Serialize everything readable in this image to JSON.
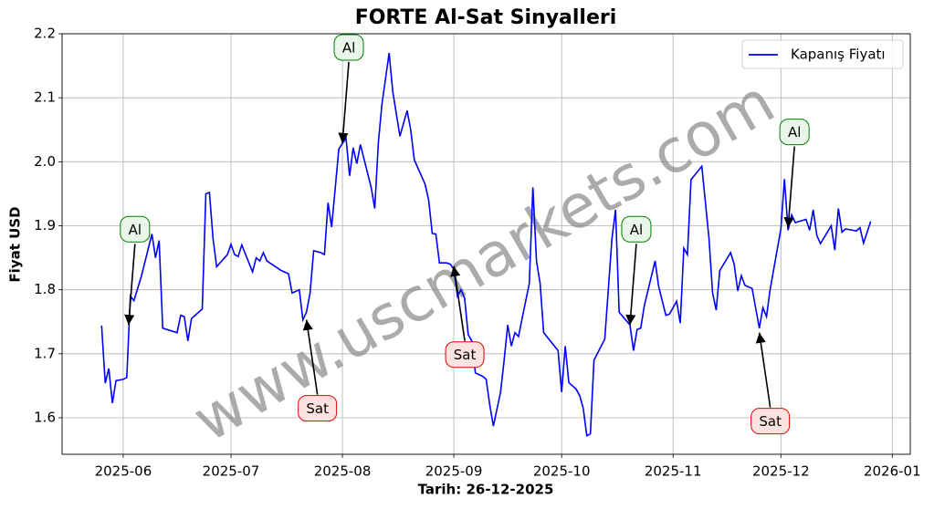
{
  "chart_data": {
    "type": "line",
    "title": "FORTE Al-Sat Sinyalleri",
    "xlabel": "Tarih: 26-12-2025",
    "ylabel": "Fiyat USD",
    "watermark": "www.uscmarkets.com",
    "legend": "upper right",
    "grid": true,
    "xlim": [
      20223,
      20459
    ],
    "xticks": [
      {
        "value": 20240,
        "label": "2025-06"
      },
      {
        "value": 20270,
        "label": "2025-07"
      },
      {
        "value": 20301,
        "label": "2025-08"
      },
      {
        "value": 20332,
        "label": "2025-09"
      },
      {
        "value": 20362,
        "label": "2025-10"
      },
      {
        "value": 20393,
        "label": "2025-11"
      },
      {
        "value": 20423,
        "label": "2025-12"
      },
      {
        "value": 20454,
        "label": "2026-01"
      }
    ],
    "ylim": [
      1.543,
      2.2
    ],
    "yticks": [
      1.6,
      1.7,
      1.8,
      1.9,
      {
        "value": 2,
        "label": "2.0"
      },
      2.1,
      2.2
    ],
    "series": [
      {
        "name": "Kapanış Fiyatı",
        "color": "#0000ff",
        "x": [
          20234,
          20235,
          20236,
          20237,
          20238,
          20240,
          20241,
          20242,
          20243,
          20245,
          20248,
          20249,
          20250,
          20251,
          20255,
          20256,
          20257,
          20258,
          20259,
          20262,
          20263,
          20264,
          20265,
          20266,
          20269,
          20270,
          20271,
          20272,
          20273,
          20276,
          20277,
          20278,
          20279,
          20280,
          20284,
          20286,
          20287,
          20289,
          20290,
          20291,
          20292,
          20293,
          20295,
          20296,
          20297,
          20298,
          20300,
          20302,
          20303,
          20304,
          20305,
          20306,
          20309,
          20310,
          20311,
          20312,
          20314,
          20315,
          20317,
          20319,
          20320,
          20321,
          20324,
          20325,
          20326,
          20327,
          20328,
          20330,
          20331,
          20332,
          20333,
          20334,
          20335,
          20336,
          20337,
          20338,
          20340,
          20341,
          20342,
          20343,
          20345,
          20346,
          20347,
          20348,
          20349,
          20350,
          20351,
          20353,
          20354,
          20355,
          20356,
          20357,
          20361,
          20362,
          20363,
          20364,
          20366,
          20367,
          20368,
          20369,
          20370,
          20371,
          20374,
          20376,
          20377,
          20378,
          20381,
          20382,
          20383,
          20384,
          20385,
          20388,
          20389,
          20391,
          20392,
          20394,
          20395,
          20396,
          20397,
          20398,
          20401,
          20403,
          20404,
          20405,
          20406,
          20409,
          20410,
          20411,
          20412,
          20413,
          20415,
          20417,
          20418,
          20419,
          20420,
          20423,
          20424,
          20425,
          20426,
          20427,
          20430,
          20431,
          20432,
          20433,
          20434,
          20437,
          20438,
          20439,
          20440,
          20441,
          20444,
          20445,
          20446,
          20448
        ],
        "values": [
          1.744,
          1.654,
          1.677,
          1.623,
          1.658,
          1.66,
          1.663,
          1.79,
          1.783,
          1.82,
          1.887,
          1.85,
          1.877,
          1.74,
          1.733,
          1.76,
          1.758,
          1.72,
          1.755,
          1.77,
          1.95,
          1.952,
          1.88,
          1.836,
          1.855,
          1.871,
          1.855,
          1.852,
          1.87,
          1.828,
          1.85,
          1.845,
          1.858,
          1.845,
          1.83,
          1.825,
          1.795,
          1.8,
          1.753,
          1.765,
          1.795,
          1.861,
          1.858,
          1.855,
          1.936,
          1.898,
          2.02,
          2.037,
          1.978,
          2.022,
          1.997,
          2.027,
          1.96,
          1.927,
          2.03,
          2.09,
          2.17,
          2.11,
          2.04,
          2.08,
          2.05,
          2.003,
          1.965,
          1.94,
          1.888,
          1.887,
          1.842,
          1.842,
          1.84,
          1.832,
          1.79,
          1.8,
          1.787,
          1.73,
          1.72,
          1.67,
          1.665,
          1.66,
          1.62,
          1.587,
          1.64,
          1.69,
          1.745,
          1.712,
          1.733,
          1.727,
          1.755,
          1.81,
          1.96,
          1.845,
          1.81,
          1.733,
          1.705,
          1.64,
          1.712,
          1.655,
          1.645,
          1.635,
          1.615,
          1.572,
          1.575,
          1.69,
          1.723,
          1.88,
          1.925,
          1.765,
          1.745,
          1.705,
          1.738,
          1.74,
          1.775,
          1.845,
          1.805,
          1.76,
          1.762,
          1.782,
          1.748,
          1.865,
          1.855,
          1.972,
          1.993,
          1.88,
          1.795,
          1.768,
          1.83,
          1.858,
          1.84,
          1.798,
          1.822,
          1.807,
          1.802,
          1.74,
          1.772,
          1.758,
          1.8,
          1.895,
          1.973,
          1.893,
          1.917,
          1.905,
          1.91,
          1.893,
          1.925,
          1.885,
          1.872,
          1.9,
          1.862,
          1.927,
          1.89,
          1.895,
          1.892,
          1.897,
          1.873,
          1.907
        ]
      }
    ],
    "annotations": [
      {
        "text": "Al",
        "x": 20241.5,
        "y": 1.745
      },
      {
        "text": "Sat",
        "x": 20291,
        "y": 1.753
      },
      {
        "text": "Al",
        "x": 20301,
        "y": 2.029
      },
      {
        "text": "Sat",
        "x": 20332,
        "y": 1.837
      },
      {
        "text": "Al",
        "x": 20381,
        "y": 1.745
      },
      {
        "text": "Sat",
        "x": 20417,
        "y": 1.733
      },
      {
        "text": "Al",
        "x": 20425,
        "y": 1.897
      }
    ]
  }
}
